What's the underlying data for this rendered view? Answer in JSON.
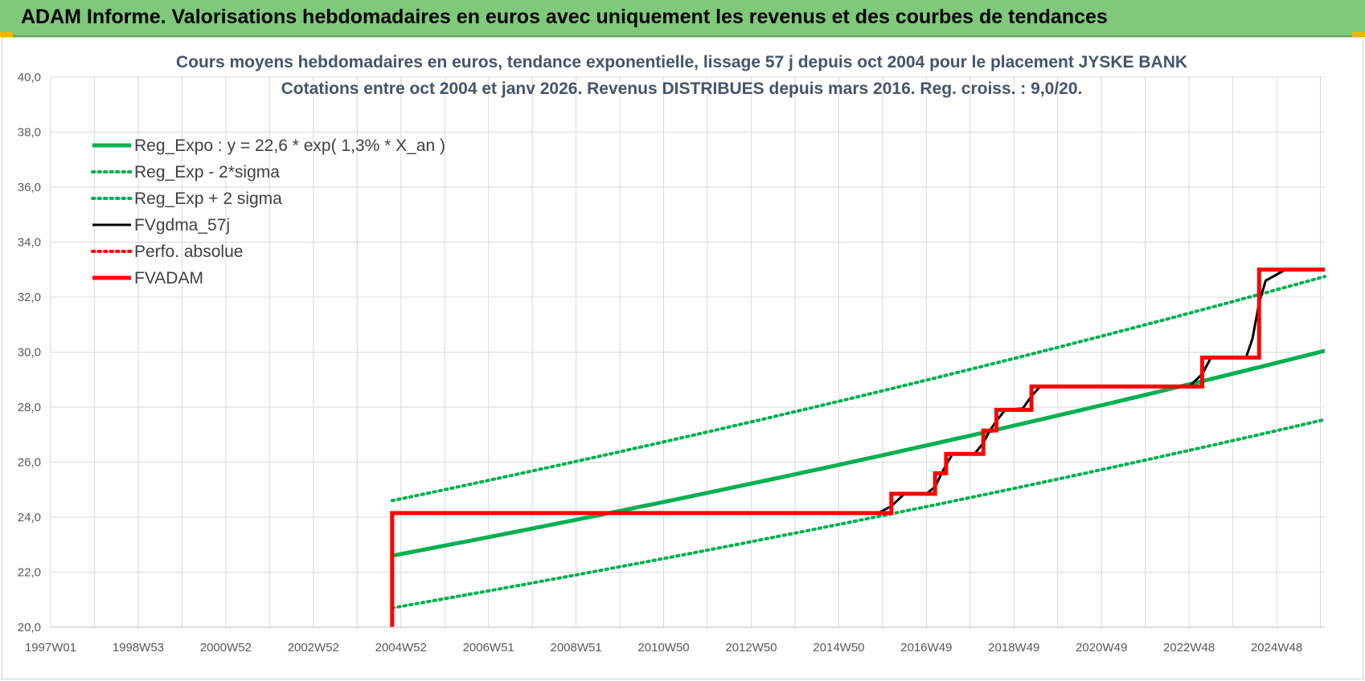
{
  "header": {
    "title": "ADAM Informe. Valorisations hebdomadaires en euros avec uniquement les revenus et des courbes de tendances"
  },
  "colors": {
    "banner": "#7fc97a",
    "green": "#00b050",
    "red": "#ff0000",
    "black": "#000000",
    "grid": "#d9d9d9"
  },
  "chart_data": {
    "type": "line",
    "title_lines": [
      "Cours moyens hebdomadaires en euros, tendance exponentielle, lissage 57 j depuis oct 2004 pour le placement JYSKE BANK",
      "Cotations entre oct 2004 et janv 2026. Revenus DISTRIBUES depuis mars 2016. Reg. croiss. : 9,0/20."
    ],
    "x_ticks": [
      "1997W01",
      "1998W53",
      "2000W52",
      "2002W52",
      "2004W52",
      "2006W51",
      "2008W51",
      "2010W50",
      "2012W50",
      "2014W50",
      "2016W49",
      "2018W49",
      "2020W49",
      "2022W48",
      "2024W48"
    ],
    "x_tick_years": [
      1997.0,
      1999.0,
      2001.0,
      2003.0,
      2005.0,
      2007.0,
      2009.0,
      2011.0,
      2013.0,
      2015.0,
      2017.0,
      2019.0,
      2021.0,
      2023.0,
      2025.0
    ],
    "xlim": [
      1997.0,
      2026.1
    ],
    "y_ticks": [
      "20,0",
      "22,0",
      "24,0",
      "26,0",
      "28,0",
      "30,0",
      "32,0",
      "34,0",
      "36,0",
      "38,0",
      "40,0"
    ],
    "ylim": [
      20,
      40
    ],
    "grid": true,
    "legend_position": "top-left",
    "legend": [
      {
        "name": "Reg_Expo : y = 22,6 * exp( 1,3% *  X_an )",
        "color": "#00b050",
        "style": "solid-thick"
      },
      {
        "name": "Reg_Exp - 2*sigma",
        "color": "#00b050",
        "style": "dotted"
      },
      {
        "name": "Reg_Exp + 2 sigma",
        "color": "#00b050",
        "style": "dotted"
      },
      {
        "name": "FVgdma_57j",
        "color": "#000000",
        "style": "solid"
      },
      {
        "name": "Perfo. absolue",
        "color": "#ff0000",
        "style": "dotted"
      },
      {
        "name": "FVADAM",
        "color": "#ff0000",
        "style": "solid-thick"
      }
    ],
    "series": [
      {
        "name": "Reg_Expo : y = 22,6 * exp( 1,3% *  X_an )",
        "x": [
          2004.8,
          2026.1
        ],
        "y": [
          22.6,
          30.05
        ]
      },
      {
        "name": "Reg_Exp - 2*sigma",
        "x": [
          2004.8,
          2026.1
        ],
        "y": [
          20.7,
          27.55
        ]
      },
      {
        "name": "Reg_Exp + 2 sigma",
        "x": [
          2004.8,
          2026.1
        ],
        "y": [
          24.6,
          32.75
        ]
      },
      {
        "name": "FVADAM",
        "x": [
          2004.8,
          2004.8,
          2016.2,
          2016.2,
          2017.2,
          2017.2,
          2017.45,
          2017.45,
          2018.3,
          2018.3,
          2018.6,
          2018.6,
          2019.4,
          2019.4,
          2023.3,
          2023.3,
          2024.6,
          2024.6,
          2026.1
        ],
        "y": [
          20.0,
          24.15,
          24.15,
          24.85,
          24.85,
          25.6,
          25.6,
          26.3,
          26.3,
          27.15,
          27.15,
          27.9,
          27.9,
          28.75,
          28.75,
          29.8,
          29.8,
          33.0,
          33.0
        ]
      },
      {
        "name": "FVgdma_57j",
        "x": [
          2015.9,
          2016.2,
          2016.5,
          2017.0,
          2017.2,
          2017.35,
          2017.45,
          2017.6,
          2018.1,
          2018.3,
          2018.45,
          2018.6,
          2018.8,
          2019.2,
          2019.4,
          2019.6,
          2023.0,
          2023.3,
          2023.5,
          2024.3,
          2024.45,
          2024.6,
          2024.75,
          2025.2,
          2026.1
        ],
        "y": [
          24.15,
          24.4,
          24.85,
          24.85,
          25.1,
          25.6,
          25.9,
          26.3,
          26.3,
          26.7,
          27.15,
          27.5,
          27.9,
          27.95,
          28.4,
          28.75,
          28.75,
          29.2,
          29.8,
          29.8,
          30.5,
          31.8,
          32.6,
          33.0,
          33.0
        ]
      }
    ]
  }
}
